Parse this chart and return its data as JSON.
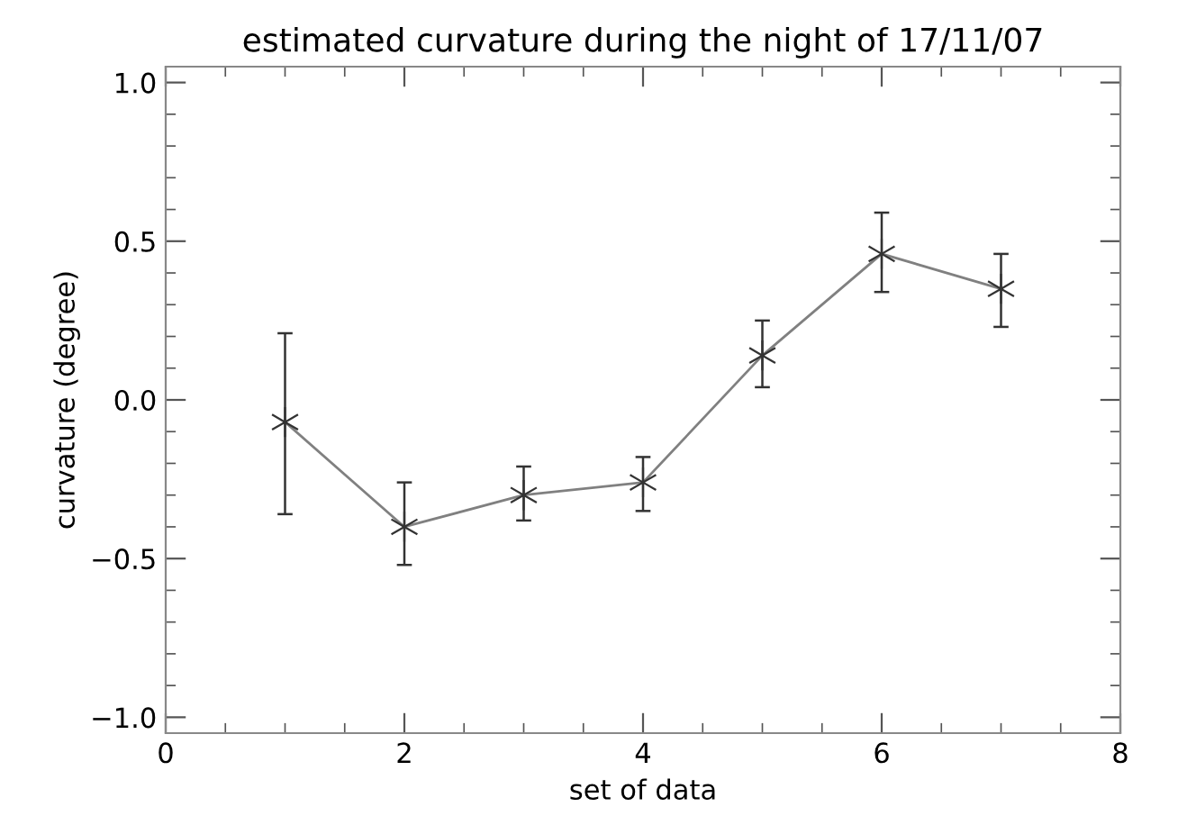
{
  "chart_data": {
    "type": "line",
    "title": "estimated curvature during the night of 17/11/07",
    "xlabel": "set of data",
    "ylabel": "curvature (degree)",
    "x": [
      1,
      2,
      3,
      4,
      5,
      6,
      7
    ],
    "series": [
      {
        "color": "#808080",
        "values": [
          -0.07,
          -0.4,
          -0.3,
          -0.26,
          0.14,
          0.46,
          0.35
        ],
        "errors": [
          [
            -0.36,
            0.21
          ],
          [
            -0.52,
            -0.26
          ],
          [
            -0.38,
            -0.21
          ],
          [
            -0.35,
            -0.18
          ],
          [
            0.04,
            0.25
          ],
          [
            0.34,
            0.59
          ],
          [
            0.23,
            0.46
          ]
        ]
      }
    ],
    "xlim": [
      0,
      8
    ],
    "xticks": [
      0,
      2,
      4,
      6,
      8
    ],
    "ylim": [
      -1.05,
      1.05
    ],
    "yticks": [
      {
        "value": -1.0,
        "label": "−1.0"
      },
      {
        "value": -0.5,
        "label": "−0.5"
      },
      {
        "value": 0.0,
        "label": "0.0"
      },
      {
        "value": 0.5,
        "label": "0.5"
      },
      {
        "value": 1.0,
        "label": "1.0"
      }
    ],
    "marker": "cross",
    "line_style": "solid",
    "grid": false,
    "legend": false
  }
}
